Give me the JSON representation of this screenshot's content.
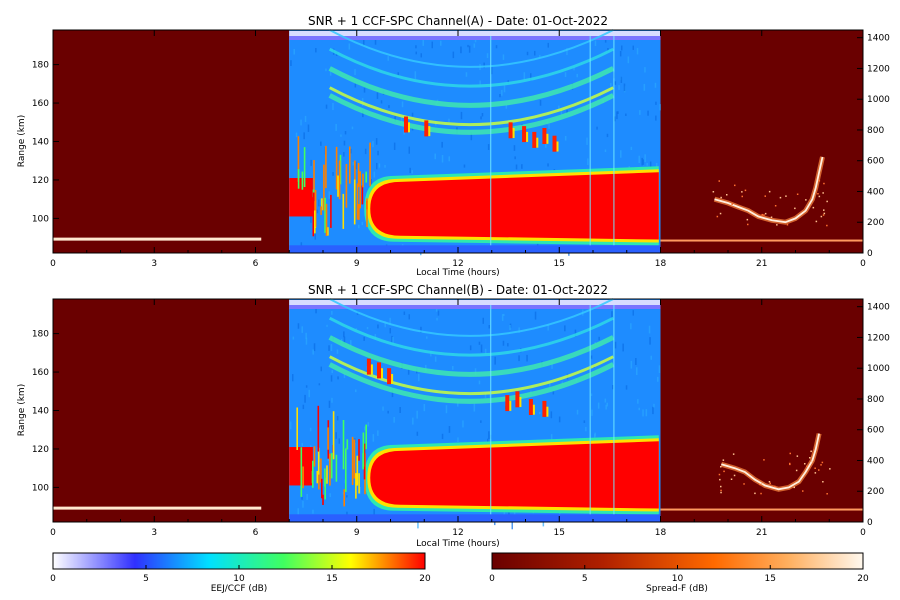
{
  "chart_data": [
    {
      "type": "heatmap",
      "title": "SNR + 1 CCF-SPC Channel(A) - Date: 01-Oct-2022",
      "xlabel": "Local Time (hours)",
      "ylabel": "Range (km)",
      "x_ticks": [
        "0",
        "3",
        "6",
        "9",
        "12",
        "15",
        "18",
        "21",
        "0"
      ],
      "y_ticks": [
        "100",
        "120",
        "140",
        "160",
        "180"
      ],
      "y2_ticks": [
        "0",
        "200",
        "400",
        "600",
        "800",
        "1000",
        "1200",
        "1400"
      ],
      "xlim": [
        0,
        24
      ],
      "ylim": [
        82,
        198
      ],
      "y2lim": [
        0,
        1450
      ],
      "day_window": [
        7,
        18
      ],
      "day_scale": "EEJ/CCF (dB)",
      "night_scale": "Spread-F (dB)",
      "features": {
        "eej_band_km": [
          87,
          122
        ],
        "valley_echo_center_km": 150
      }
    },
    {
      "type": "heatmap",
      "title": "SNR + 1 CCF-SPC Channel(B) - Date: 01-Oct-2022",
      "xlabel": "Local Time (hours)",
      "ylabel": "Range (km)",
      "x_ticks": [
        "0",
        "3",
        "6",
        "9",
        "12",
        "15",
        "18",
        "21",
        "0"
      ],
      "y_ticks": [
        "100",
        "120",
        "140",
        "160",
        "180"
      ],
      "y2_ticks": [
        "0",
        "200",
        "400",
        "600",
        "800",
        "1000",
        "1200",
        "1400"
      ],
      "xlim": [
        0,
        24
      ],
      "ylim": [
        82,
        198
      ],
      "y2lim": [
        0,
        1450
      ],
      "day_window": [
        7,
        18
      ],
      "day_scale": "EEJ/CCF (dB)",
      "night_scale": "Spread-F (dB)",
      "features": {
        "eej_band_km": [
          87,
          122
        ],
        "valley_echo_center_km": 150
      }
    }
  ],
  "colorbars": [
    {
      "label": "EEJ/CCF (dB)",
      "ticks": [
        "0",
        "5",
        "10",
        "15",
        "20"
      ],
      "range": [
        0,
        20
      ],
      "colors": [
        "#ffffff",
        "#3030ff",
        "#00e0ff",
        "#40ff60",
        "#ffff00",
        "#ff0000"
      ]
    },
    {
      "label": "Spread-F (dB)",
      "ticks": [
        "0",
        "5",
        "10",
        "15",
        "20"
      ],
      "range": [
        0,
        20
      ],
      "colors": [
        "#6a0000",
        "#b02000",
        "#ff6a00",
        "#ffb060",
        "#fff8ee"
      ]
    }
  ]
}
